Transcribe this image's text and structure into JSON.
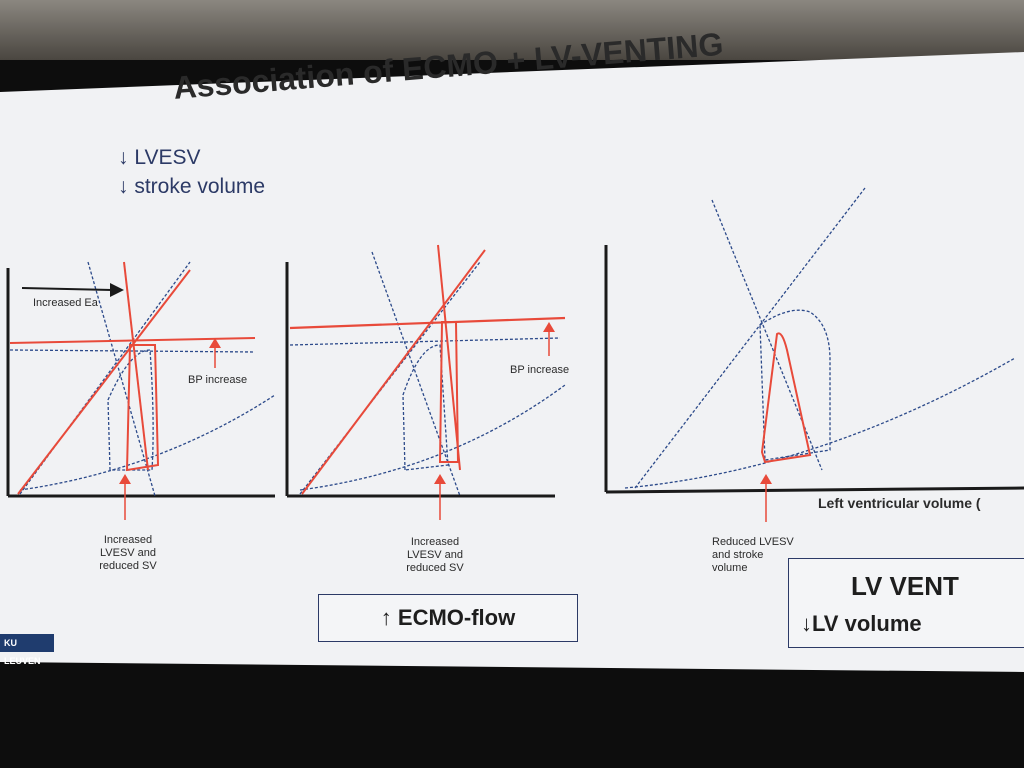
{
  "slide": {
    "title": "Association of ECMO + LV-VENTING",
    "notes": [
      "↓ LVESV",
      "↓ stroke volume"
    ],
    "panel1": {
      "arrow_label": "Increased Ea",
      "bp_label": "BP increase",
      "bottom_label": [
        "Increased",
        "LVESV and",
        "reduced SV"
      ]
    },
    "panel2": {
      "bp_label": "BP increase",
      "bottom_label": [
        "Increased",
        "LVESV and",
        "reduced SV"
      ],
      "box_label": "↑ ECMO-flow"
    },
    "panel3": {
      "x_axis_label": "Left ventricular volume (",
      "bottom_label": [
        "Reduced LVESV",
        "and stroke",
        "volume"
      ],
      "box_title": "LV VENT",
      "box_sub": "↓LV volume"
    },
    "logo": "KU LEUVEN",
    "colors": {
      "red": "#e84a3a",
      "blue": "#2c4a8a",
      "axis": "#1a1a1a"
    }
  }
}
